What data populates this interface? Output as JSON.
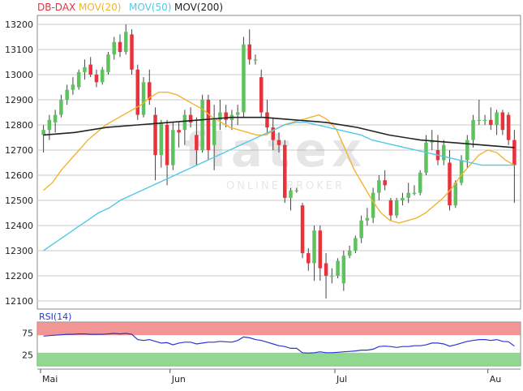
{
  "legend": [
    {
      "label": "DB-DAX",
      "color": "#e8323c"
    },
    {
      "label": "MOV(20)",
      "color": "#f2b431"
    },
    {
      "label": "MOV(50)",
      "color": "#52c8e8"
    },
    {
      "label": "MOV(200)",
      "color": "#222222"
    }
  ],
  "watermark": {
    "main": "flatex",
    "sub": "ONLINE BROKER"
  },
  "colors": {
    "up": "#5ec25e",
    "down": "#e8323c",
    "wick": "#444444",
    "grid": "#c8c8c8",
    "rsi_line": "#2a36d0",
    "rsi_upper_zone": "#f08282",
    "rsi_lower_zone": "#7ed07e"
  },
  "chart_data": [
    {
      "type": "candlestick",
      "series_name": "DB-DAX",
      "ylim": [
        12100,
        13250
      ],
      "y_ticks": [
        12100,
        12200,
        12300,
        12400,
        12500,
        12600,
        12700,
        12800,
        12900,
        13000,
        13100,
        13200
      ],
      "x_tick_labels": [
        {
          "label": "Mai",
          "index": 0
        },
        {
          "label": "Jun",
          "index": 22
        },
        {
          "label": "Jul",
          "index": 50
        },
        {
          "label": "Au",
          "index": 76
        }
      ],
      "grid": true,
      "legend_position": "top-left",
      "ohlc": [
        [
          12760,
          12800,
          12690,
          12780
        ],
        [
          12780,
          12840,
          12740,
          12820
        ],
        [
          12810,
          12860,
          12770,
          12840
        ],
        [
          12840,
          12920,
          12830,
          12900
        ],
        [
          12900,
          12960,
          12880,
          12940
        ],
        [
          12940,
          12990,
          12920,
          12960
        ],
        [
          12950,
          13020,
          12940,
          13010
        ],
        [
          13010,
          13060,
          12980,
          13030
        ],
        [
          13040,
          13070,
          12990,
          13000
        ],
        [
          13000,
          13020,
          12950,
          12970
        ],
        [
          12970,
          13030,
          12960,
          13020
        ],
        [
          13010,
          13090,
          13000,
          13080
        ],
        [
          13080,
          13150,
          13060,
          13130
        ],
        [
          13130,
          13160,
          13070,
          13090
        ],
        [
          13090,
          13200,
          13080,
          13170
        ],
        [
          13160,
          13180,
          13000,
          13020
        ],
        [
          13020,
          13040,
          12820,
          12840
        ],
        [
          12840,
          12990,
          12830,
          12970
        ],
        [
          12970,
          13020,
          12880,
          12900
        ],
        [
          12840,
          12870,
          12580,
          12680
        ],
        [
          12680,
          12820,
          12630,
          12810
        ],
        [
          12800,
          12820,
          12560,
          12640
        ],
        [
          12640,
          12810,
          12620,
          12780
        ],
        [
          12780,
          12810,
          12710,
          12770
        ],
        [
          12780,
          12860,
          12720,
          12840
        ],
        [
          12840,
          12870,
          12790,
          12810
        ],
        [
          12760,
          12830,
          12640,
          12700
        ],
        [
          12700,
          12920,
          12690,
          12900
        ],
        [
          12900,
          12920,
          12660,
          12700
        ],
        [
          12720,
          12880,
          12620,
          12820
        ],
        [
          12820,
          12900,
          12780,
          12850
        ],
        [
          12850,
          12880,
          12790,
          12820
        ],
        [
          12820,
          12860,
          12780,
          12840
        ],
        [
          12840,
          12880,
          12800,
          12850
        ],
        [
          12850,
          13150,
          12830,
          13120
        ],
        [
          13120,
          13180,
          13040,
          13060
        ],
        [
          13060,
          13080,
          13040,
          13060
        ],
        [
          12990,
          13020,
          12830,
          12850
        ],
        [
          12850,
          12900,
          12760,
          12790
        ],
        [
          12790,
          12830,
          12700,
          12740
        ],
        [
          12740,
          12770,
          12690,
          12720
        ],
        [
          12720,
          12740,
          12490,
          12510
        ],
        [
          12510,
          12550,
          12460,
          12540
        ],
        [
          12540,
          12550,
          12530,
          12540
        ],
        [
          12480,
          12490,
          12270,
          12290
        ],
        [
          12290,
          12310,
          12220,
          12250
        ],
        [
          12250,
          12400,
          12180,
          12380
        ],
        [
          12380,
          12400,
          12180,
          12230
        ],
        [
          12250,
          12290,
          12110,
          12200
        ],
        [
          12200,
          12230,
          12170,
          12200
        ],
        [
          12200,
          12270,
          12190,
          12260
        ],
        [
          12170,
          12300,
          12140,
          12280
        ],
        [
          12280,
          12320,
          12270,
          12300
        ],
        [
          12300,
          12360,
          12290,
          12350
        ],
        [
          12350,
          12440,
          12330,
          12420
        ],
        [
          12420,
          12470,
          12400,
          12430
        ],
        [
          12430,
          12550,
          12410,
          12530
        ],
        [
          12530,
          12600,
          12500,
          12580
        ],
        [
          12580,
          12620,
          12540,
          12560
        ],
        [
          12500,
          12510,
          12420,
          12440
        ],
        [
          12440,
          12510,
          12430,
          12500
        ],
        [
          12500,
          12530,
          12480,
          12510
        ],
        [
          12510,
          12570,
          12490,
          12530
        ],
        [
          12530,
          12560,
          12520,
          12530
        ],
        [
          12530,
          12620,
          12520,
          12610
        ],
        [
          12610,
          12760,
          12600,
          12730
        ],
        [
          12730,
          12780,
          12700,
          12740
        ],
        [
          12700,
          12760,
          12640,
          12660
        ],
        [
          12660,
          12740,
          12640,
          12720
        ],
        [
          12650,
          12700,
          12460,
          12480
        ],
        [
          12480,
          12580,
          12470,
          12570
        ],
        [
          12570,
          12680,
          12560,
          12660
        ],
        [
          12660,
          12760,
          12630,
          12740
        ],
        [
          12740,
          12840,
          12710,
          12820
        ],
        [
          12820,
          12900,
          12800,
          12820
        ],
        [
          12820,
          12840,
          12800,
          12820
        ],
        [
          12820,
          12870,
          12780,
          12800
        ],
        [
          12800,
          12860,
          12760,
          12850
        ],
        [
          12850,
          12860,
          12760,
          12780
        ],
        [
          12840,
          12850,
          12720,
          12740
        ],
        [
          12740,
          12780,
          12490,
          12640
        ]
      ],
      "mov20": [
        12540,
        12570,
        12620,
        12660,
        12700,
        12740,
        12770,
        12800,
        12820,
        12840,
        12860,
        12880,
        12910,
        12930,
        12930,
        12920,
        12900,
        12880,
        12860,
        12830,
        12810,
        12790,
        12780,
        12770,
        12760,
        12760,
        12780,
        12800,
        12810,
        12820,
        12830,
        12840,
        12820,
        12780,
        12700,
        12620,
        12560,
        12500,
        12450,
        12420,
        12410,
        12420,
        12430,
        12450,
        12480,
        12510,
        12550,
        12600,
        12640,
        12680,
        12700,
        12690,
        12660,
        12640
      ],
      "mov20_start_index": 0,
      "mov50": [
        12300,
        12330,
        12360,
        12390,
        12420,
        12450,
        12470,
        12500,
        12520,
        12540,
        12560,
        12580,
        12600,
        12620,
        12640,
        12660,
        12680,
        12700,
        12720,
        12740,
        12760,
        12780,
        12800,
        12810,
        12810,
        12800,
        12790,
        12780,
        12770,
        12760,
        12740,
        12730,
        12720,
        12710,
        12700,
        12690,
        12680,
        12670,
        12660,
        12650,
        12640,
        12640,
        12640,
        12640
      ],
      "mov50_start_index": 0,
      "mov200": [
        12760,
        12770,
        12790,
        12800,
        12810,
        12820,
        12830,
        12830,
        12820,
        12810,
        12790,
        12760,
        12740,
        12730,
        12720,
        12710
      ],
      "mov200_start_index": 0
    },
    {
      "type": "line",
      "series_name": "RSI(14)",
      "ylim": [
        0,
        100
      ],
      "y_ticks": [
        25,
        75
      ],
      "zones": [
        {
          "from": 70,
          "to": 100,
          "label": "overbought"
        },
        {
          "from": 0,
          "to": 30,
          "label": "oversold"
        }
      ],
      "values": [
        68,
        69,
        70,
        71,
        72,
        72,
        73,
        73,
        72,
        72,
        72,
        73,
        74,
        73,
        74,
        72,
        60,
        58,
        60,
        56,
        52,
        53,
        48,
        52,
        54,
        54,
        50,
        52,
        54,
        54,
        56,
        55,
        54,
        58,
        66,
        64,
        60,
        58,
        54,
        50,
        46,
        44,
        40,
        40,
        30,
        29,
        30,
        32,
        30,
        30,
        31,
        32,
        33,
        34,
        36,
        36,
        38,
        44,
        45,
        44,
        42,
        44,
        44,
        46,
        46,
        48,
        52,
        52,
        50,
        45,
        48,
        52,
        56,
        58,
        60,
        60,
        58,
        60,
        56,
        55,
        45
      ]
    }
  ]
}
